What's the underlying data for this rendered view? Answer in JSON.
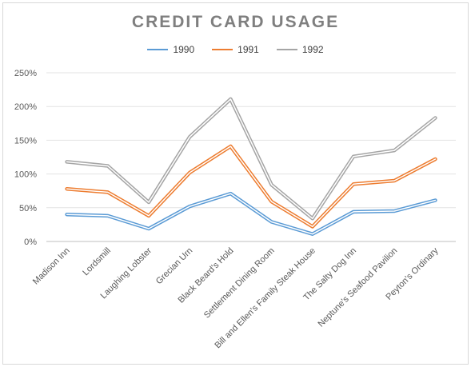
{
  "chart_data": {
    "type": "line",
    "title": "CREDIT CARD USAGE",
    "xlabel": "",
    "ylabel": "",
    "stacked": true,
    "categories": [
      "Madison Inn",
      "Lordsmill",
      "Laughing Lobster",
      "Grecian Urn",
      "Black Beard's Hold",
      "Settlement Dining Room",
      "Bill and Ellen's Family Steak House",
      "The Salty Dog Inn",
      "Neptune's Seafood Pavilion",
      "Peyton's Ordinary"
    ],
    "series": [
      {
        "name": "1990",
        "color": "#5b9bd5",
        "values": [
          0.4,
          0.38,
          0.19,
          0.52,
          0.71,
          0.29,
          0.11,
          0.44,
          0.45,
          0.61
        ]
      },
      {
        "name": "1991",
        "color": "#ed7d31",
        "values": [
          0.38,
          0.35,
          0.19,
          0.5,
          0.7,
          0.3,
          0.11,
          0.41,
          0.45,
          0.61
        ]
      },
      {
        "name": "1992",
        "color": "#a5a5a5",
        "values": [
          0.4,
          0.39,
          0.2,
          0.53,
          0.7,
          0.25,
          0.12,
          0.41,
          0.45,
          0.61
        ]
      }
    ],
    "y_ticks": [
      "0%",
      "50%",
      "100%",
      "150%",
      "200%",
      "250%"
    ],
    "ylim": [
      0,
      2.5
    ],
    "grid": true,
    "legend": "top-center"
  }
}
